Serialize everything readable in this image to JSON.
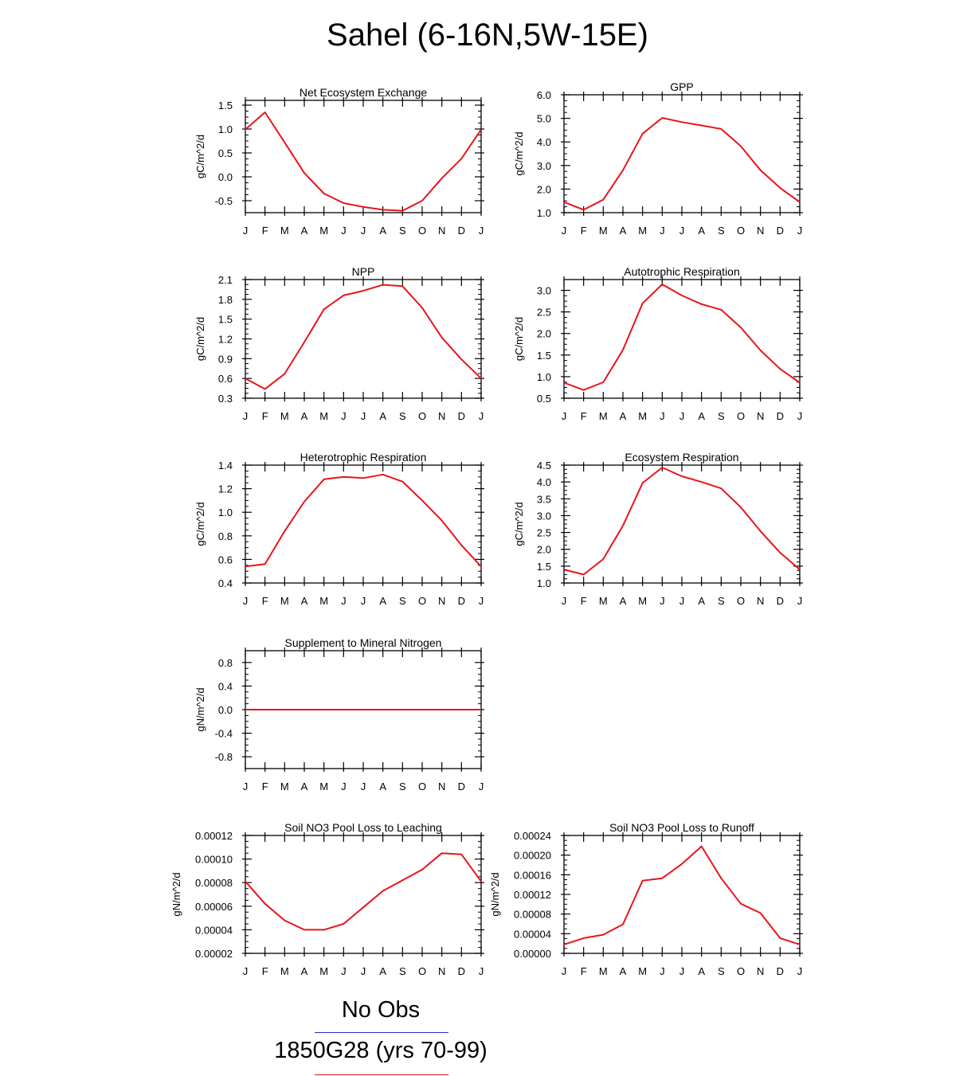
{
  "title": "Sahel (6-16N,5W-15E)",
  "month_labels": [
    "J",
    "F",
    "M",
    "A",
    "M",
    "J",
    "J",
    "A",
    "S",
    "O",
    "N",
    "D",
    "J"
  ],
  "colors": {
    "model": "#e8141b",
    "obs": "#2b2bd6",
    "axis": "#000000"
  },
  "legend": {
    "obs_label": "No Obs",
    "model_label": "1850G28 (yrs 70-99)"
  },
  "chart_data": [
    {
      "type": "line",
      "title": "Net Ecosystem Exchange",
      "ylabel": "gC/m^2/d",
      "ylim": [
        -0.75,
        1.6
      ],
      "yticks": [
        "1.5",
        "1.0",
        "0.5",
        "0.0",
        "-0.5"
      ],
      "ytick_values": [
        1.5,
        1.0,
        0.5,
        0.0,
        -0.5
      ],
      "series": [
        {
          "name": "1850G28 (yrs 70-99)",
          "values": [
            0.99,
            1.35,
            0.72,
            0.08,
            -0.35,
            -0.55,
            -0.63,
            -0.69,
            -0.71,
            -0.5,
            -0.03,
            0.38,
            0.99
          ]
        }
      ]
    },
    {
      "type": "line",
      "title": "GPP",
      "ylabel": "gC/m^2/d",
      "ylim": [
        1.0,
        6.0
      ],
      "yticks": [
        "6.0",
        "5.0",
        "4.0",
        "3.0",
        "2.0",
        "1.0"
      ],
      "ytick_values": [
        6.0,
        5.0,
        4.0,
        3.0,
        2.0,
        1.0
      ],
      "series": [
        {
          "name": "1850G28 (yrs 70-99)",
          "values": [
            1.45,
            1.12,
            1.55,
            2.8,
            4.35,
            5.02,
            4.84,
            4.7,
            4.55,
            3.82,
            2.8,
            2.05,
            1.45
          ]
        }
      ]
    },
    {
      "type": "line",
      "title": "NPP",
      "ylabel": "gC/m^2/d",
      "ylim": [
        0.3,
        2.1
      ],
      "yticks": [
        "2.1",
        "1.8",
        "1.5",
        "1.2",
        "0.9",
        "0.6",
        "0.3"
      ],
      "ytick_values": [
        2.1,
        1.8,
        1.5,
        1.2,
        0.9,
        0.6,
        0.3
      ],
      "series": [
        {
          "name": "1850G28 (yrs 70-99)",
          "values": [
            0.6,
            0.44,
            0.67,
            1.15,
            1.65,
            1.86,
            1.93,
            2.02,
            2.0,
            1.67,
            1.22,
            0.89,
            0.6
          ]
        }
      ]
    },
    {
      "type": "line",
      "title": "Autotrophic Respiration",
      "ylabel": "gC/m^2/d",
      "ylim": [
        0.5,
        3.25
      ],
      "yticks": [
        "3.0",
        "2.5",
        "2.0",
        "1.5",
        "1.0",
        "0.5"
      ],
      "ytick_values": [
        3.0,
        2.5,
        2.0,
        1.5,
        1.0,
        0.5
      ],
      "series": [
        {
          "name": "1850G28 (yrs 70-99)",
          "values": [
            0.86,
            0.69,
            0.87,
            1.62,
            2.7,
            3.14,
            2.88,
            2.68,
            2.55,
            2.14,
            1.61,
            1.18,
            0.86
          ]
        }
      ]
    },
    {
      "type": "line",
      "title": "Heterotrophic Respiration",
      "ylabel": "gC/m^2/d",
      "ylim": [
        0.4,
        1.4
      ],
      "yticks": [
        "1.4",
        "1.2",
        "1.0",
        "0.8",
        "0.6",
        "0.4"
      ],
      "ytick_values": [
        1.4,
        1.2,
        1.0,
        0.8,
        0.6,
        0.4
      ],
      "series": [
        {
          "name": "1850G28 (yrs 70-99)",
          "values": [
            0.54,
            0.56,
            0.84,
            1.09,
            1.28,
            1.3,
            1.29,
            1.32,
            1.26,
            1.1,
            0.93,
            0.72,
            0.54
          ]
        }
      ]
    },
    {
      "type": "line",
      "title": "Ecosystem Respiration",
      "ylabel": "gC/m^2/d",
      "ylim": [
        1.0,
        4.5
      ],
      "yticks": [
        "4.5",
        "4.0",
        "3.5",
        "3.0",
        "2.5",
        "2.0",
        "1.5",
        "1.0"
      ],
      "ytick_values": [
        4.5,
        4.0,
        3.5,
        3.0,
        2.5,
        2.0,
        1.5,
        1.0
      ],
      "series": [
        {
          "name": "1850G28 (yrs 70-99)",
          "values": [
            1.4,
            1.25,
            1.71,
            2.7,
            3.97,
            4.43,
            4.17,
            4.0,
            3.81,
            3.25,
            2.54,
            1.9,
            1.4
          ]
        }
      ]
    },
    {
      "type": "line",
      "title": "Supplement to Mineral Nitrogen",
      "ylabel": "gN/m^2/d",
      "ylim": [
        -1.0,
        1.0
      ],
      "yticks": [
        "0.8",
        "0.4",
        "0.0",
        "-0.4",
        "-0.8"
      ],
      "ytick_values": [
        0.8,
        0.4,
        0.0,
        -0.4,
        -0.8
      ],
      "series": [
        {
          "name": "1850G28 (yrs 70-99)",
          "values": [
            0,
            0,
            0,
            0,
            0,
            0,
            0,
            0,
            0,
            0,
            0,
            0,
            0
          ]
        }
      ]
    },
    {
      "type": "line",
      "title": "Soil NO3 Pool Loss to Leaching",
      "ylabel": "gN/m^2/d",
      "ylim": [
        2e-05,
        0.00012
      ],
      "yticks": [
        "0.00012",
        "0.00010",
        "0.00008",
        "0.00006",
        "0.00004",
        "0.00002"
      ],
      "ytick_values": [
        0.00012,
        0.0001,
        8e-05,
        6e-05,
        4e-05,
        2e-05
      ],
      "series": [
        {
          "name": "1850G28 (yrs 70-99)",
          "values": [
            8.1e-05,
            6.2e-05,
            4.8e-05,
            4e-05,
            4e-05,
            4.5e-05,
            5.9e-05,
            7.3e-05,
            8.2e-05,
            9.1e-05,
            0.000105,
            0.000104,
            8.1e-05
          ]
        }
      ]
    },
    {
      "type": "line",
      "title": "Soil NO3 Pool Loss to Runoff",
      "ylabel": "gN/m^2/d",
      "ylim": [
        0.0,
        0.00024
      ],
      "yticks": [
        "0.00024",
        "0.00020",
        "0.00016",
        "0.00012",
        "0.00008",
        "0.00004",
        "0.00000"
      ],
      "ytick_values": [
        0.00024,
        0.0002,
        0.00016,
        0.00012,
        8e-05,
        4e-05,
        0.0
      ],
      "series": [
        {
          "name": "1850G28 (yrs 70-99)",
          "values": [
            1.8e-05,
            3.1e-05,
            3.8e-05,
            5.9e-05,
            0.000148,
            0.000153,
            0.000182,
            0.000218,
            0.000153,
            0.000101,
            8.2e-05,
            3.1e-05,
            1.8e-05
          ]
        }
      ]
    }
  ]
}
